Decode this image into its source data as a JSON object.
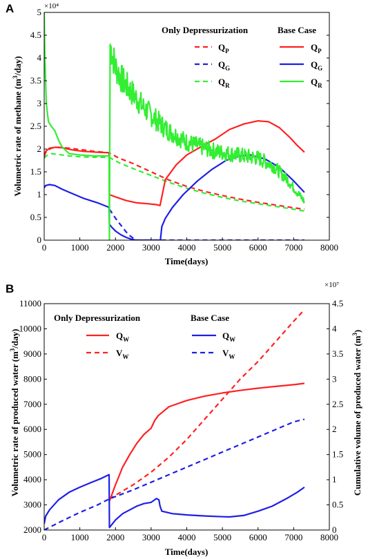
{
  "chart_data": [
    {
      "panel": "A",
      "type": "line",
      "xlabel": "Time(days)",
      "ylabel": "Volumetric rate of methane (m³/day)",
      "ylabel_parts": {
        "pre": "Volumetric rate of methane (m",
        "sup": "3",
        "post": "/day)"
      },
      "y_exponent": "×10⁴",
      "xlim": [
        0,
        8000
      ],
      "ylim": [
        0,
        5
      ],
      "x_ticks": [
        "0",
        "1000",
        "2000",
        "3000",
        "4000",
        "5000",
        "6000",
        "7000",
        "8000"
      ],
      "y_ticks": [
        "0",
        "0.5",
        "1",
        "1.5",
        "2",
        "2.5",
        "3",
        "3.5",
        "4",
        "4.5",
        "5"
      ],
      "legend_groups": [
        "Only Depressurization",
        "Base Case"
      ],
      "series": [
        {
          "name": "Q_P",
          "label": "Q",
          "sub": "P",
          "group": "Only Depressurization",
          "color": "#ff2020",
          "dash": true,
          "x": [
            0,
            60,
            200,
            400,
            700,
            1000,
            1400,
            1820,
            2100,
            2500,
            3000,
            3500,
            4000,
            4500,
            5000,
            5500,
            6000,
            6500,
            7000,
            7300
          ],
          "y": [
            1.85,
            1.95,
            2.02,
            2.04,
            2.02,
            1.99,
            1.95,
            1.92,
            1.8,
            1.68,
            1.5,
            1.32,
            1.18,
            1.07,
            0.98,
            0.9,
            0.83,
            0.77,
            0.71,
            0.68
          ]
        },
        {
          "name": "Q_G",
          "label": "Q",
          "sub": "G",
          "group": "Only Depressurization",
          "color": "#1e1ee6",
          "dash": true,
          "x": [
            1830,
            1900,
            2000,
            2100,
            2200,
            2300,
            2400,
            2500,
            2550,
            2600,
            3000,
            4000,
            5000,
            6000,
            7000,
            7300
          ],
          "y": [
            0.68,
            0.6,
            0.48,
            0.38,
            0.28,
            0.18,
            0.1,
            0.04,
            0.01,
            0,
            0,
            0,
            0,
            0,
            0,
            0
          ]
        },
        {
          "name": "Q_R",
          "label": "Q",
          "sub": "R",
          "group": "Only Depressurization",
          "color": "#33ee33",
          "dash": true,
          "x": [
            0,
            60,
            200,
            400,
            700,
            1000,
            1400,
            1820,
            2100,
            2500,
            3000,
            3500,
            4000,
            4500,
            5000,
            5500,
            6000,
            6500,
            7000,
            7300
          ],
          "y": [
            1.8,
            1.85,
            1.9,
            1.88,
            1.85,
            1.83,
            1.82,
            1.82,
            1.7,
            1.57,
            1.42,
            1.27,
            1.14,
            1.03,
            0.94,
            0.86,
            0.8,
            0.74,
            0.68,
            0.64
          ]
        },
        {
          "name": "Q_P",
          "label": "Q",
          "sub": "P",
          "group": "Base Case",
          "color": "#ff2020",
          "dash": false,
          "x": [
            0,
            40,
            150,
            300,
            500,
            800,
            1100,
            1500,
            1820,
            1830,
            2000,
            2300,
            2600,
            2900,
            3150,
            3250,
            3400,
            3700,
            4000,
            4400,
            4800,
            5200,
            5600,
            6000,
            6300,
            6600,
            6900,
            7100,
            7300
          ],
          "y": [
            1.82,
            1.95,
            2.02,
            2.04,
            2.03,
            1.98,
            1.95,
            1.93,
            1.92,
            1.0,
            0.95,
            0.87,
            0.82,
            0.8,
            0.78,
            0.76,
            1.33,
            1.65,
            1.87,
            2.05,
            2.22,
            2.43,
            2.55,
            2.62,
            2.6,
            2.47,
            2.25,
            2.08,
            1.93
          ]
        },
        {
          "name": "Q_G",
          "label": "Q",
          "sub": "G",
          "group": "Base Case",
          "color": "#1e1ee6",
          "dash": false,
          "x": [
            0,
            40,
            150,
            300,
            500,
            800,
            1100,
            1500,
            1820,
            1830,
            1900,
            2000,
            2150,
            2300,
            2450,
            2550,
            2600,
            3200,
            3260,
            3300,
            3400,
            3600,
            3900,
            4300,
            4700,
            5100,
            5500,
            5800,
            6200,
            6600,
            7000,
            7300
          ],
          "y": [
            1.15,
            1.2,
            1.22,
            1.2,
            1.12,
            1.02,
            0.92,
            0.82,
            0.72,
            0.35,
            0.28,
            0.2,
            0.12,
            0.06,
            0.02,
            0.005,
            0,
            0,
            0,
            0.3,
            0.48,
            0.72,
            1.0,
            1.3,
            1.55,
            1.75,
            1.85,
            1.87,
            1.78,
            1.6,
            1.3,
            1.05
          ]
        },
        {
          "name": "Q_R",
          "label": "Q",
          "sub": "R",
          "group": "Base Case",
          "color": "#33ee33",
          "dash": false,
          "noisy": true,
          "x": [
            0,
            20,
            60,
            120,
            200,
            300,
            400,
            500,
            700,
            1000,
            1400,
            1820,
            1830,
            1850,
            2000,
            2200,
            2400,
            2600,
            2800,
            3000,
            3200,
            3400,
            3700,
            4000,
            4400,
            4800,
            5200,
            5600,
            6000,
            6400,
            6800,
            7100,
            7300
          ],
          "y": [
            5.0,
            4.0,
            3.0,
            2.6,
            2.5,
            2.4,
            2.2,
            2.05,
            1.9,
            1.87,
            1.85,
            1.85,
            0,
            4.3,
            3.8,
            3.5,
            3.3,
            3.1,
            2.9,
            2.75,
            2.6,
            2.45,
            2.3,
            2.15,
            2.05,
            1.95,
            1.9,
            1.85,
            1.8,
            1.65,
            1.35,
            1.05,
            0.85
          ]
        }
      ]
    },
    {
      "panel": "B",
      "type": "line",
      "xlabel": "Time(days)",
      "ylabel": "Volumetric rate of produced water (m³/day)",
      "ylabel_parts": {
        "pre": "Volumetric rate of produced water (m",
        "sup": "3",
        "post": "/day)"
      },
      "y2label": "Cumulative volume of produced water (m³)",
      "y2label_parts": {
        "pre": "Cumulative volume of produced water (m",
        "sup": "3",
        "post": ")"
      },
      "y2_exponent": "×10⁷",
      "xlim": [
        0,
        8000
      ],
      "ylim": [
        2000,
        11000
      ],
      "y2lim": [
        0,
        4.5
      ],
      "x_ticks": [
        "0",
        "1000",
        "2000",
        "3000",
        "4000",
        "5000",
        "6000",
        "7000",
        "8000"
      ],
      "y_ticks": [
        "2000",
        "3000",
        "4000",
        "5000",
        "6000",
        "7000",
        "8000",
        "9000",
        "10000",
        "11000"
      ],
      "y2_ticks": [
        "0",
        "0.5",
        "1",
        "1.5",
        "2",
        "2.5",
        "3",
        "3.5",
        "4",
        "4.5"
      ],
      "legend_groups": [
        "Only Depressurization",
        "Base Case"
      ],
      "series": [
        {
          "name": "Q_W",
          "label": "Q",
          "sub": "W",
          "group": "Only Depressurization",
          "color": "#ff2020",
          "dash": false,
          "axis": "left",
          "x": [
            1830,
            2000,
            2200,
            2400,
            2600,
            2800,
            3000,
            3100,
            3200,
            3500,
            4000,
            4500,
            5000,
            5500,
            6000,
            6500,
            7000,
            7300
          ],
          "y": [
            3150,
            3800,
            4500,
            5000,
            5450,
            5800,
            6050,
            6350,
            6550,
            6900,
            7150,
            7320,
            7450,
            7550,
            7640,
            7710,
            7780,
            7830
          ]
        },
        {
          "name": "V_W",
          "label": "V",
          "sub": "W",
          "group": "Only Depressurization",
          "color": "#ff2020",
          "dash": true,
          "axis": "right",
          "x": [
            1830,
            2500,
            3000,
            3500,
            4000,
            4500,
            5000,
            5500,
            6000,
            6500,
            7000,
            7300
          ],
          "y": [
            0.62,
            0.9,
            1.15,
            1.45,
            1.8,
            2.2,
            2.6,
            3.0,
            3.35,
            3.75,
            4.15,
            4.38
          ]
        },
        {
          "name": "Q_W",
          "label": "Q",
          "sub": "W",
          "group": "Base Case",
          "color": "#1e1ee6",
          "dash": false,
          "axis": "left",
          "x": [
            0,
            40,
            150,
            400,
            700,
            1000,
            1300,
            1600,
            1820,
            1830,
            2000,
            2200,
            2400,
            2600,
            2800,
            3000,
            3150,
            3220,
            3250,
            3300,
            3600,
            4000,
            4500,
            5000,
            5200,
            5600,
            6000,
            6400,
            6800,
            7100,
            7300
          ],
          "y": [
            2250,
            2550,
            2800,
            3200,
            3500,
            3700,
            3880,
            4050,
            4200,
            2100,
            2400,
            2650,
            2800,
            2950,
            3050,
            3100,
            3250,
            3200,
            2950,
            2750,
            2650,
            2600,
            2560,
            2530,
            2520,
            2580,
            2750,
            2950,
            3250,
            3500,
            3700
          ]
        },
        {
          "name": "V_W",
          "label": "V",
          "sub": "W",
          "group": "Base Case",
          "color": "#1e1ee6",
          "dash": true,
          "axis": "right",
          "x": [
            0,
            500,
            1000,
            1500,
            1830,
            2500,
            3000,
            3500,
            4000,
            4500,
            5000,
            5500,
            6000,
            6500,
            7000,
            7300
          ],
          "y": [
            0.0,
            0.18,
            0.35,
            0.5,
            0.62,
            0.8,
            0.95,
            1.1,
            1.25,
            1.4,
            1.55,
            1.7,
            1.85,
            2.0,
            2.15,
            2.2
          ]
        }
      ]
    }
  ]
}
